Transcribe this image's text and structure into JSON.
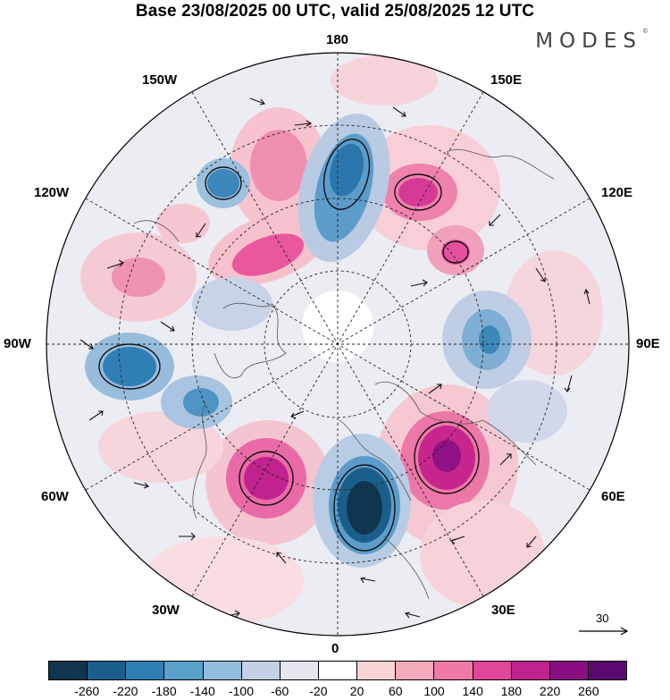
{
  "title": "Base 23/08/2025 00 UTC, valid 25/08/2025 12 UTC",
  "brand": {
    "name": "MODES",
    "mark": "©"
  },
  "longitude_labels": {
    "top": "180",
    "bottom": "0",
    "left": "90W",
    "right": "90E",
    "w150": "150W",
    "w120": "120W",
    "w60": "60W",
    "w30": "30W",
    "e150": "150E",
    "e120": "120E",
    "e60": "60E",
    "e30": "30E"
  },
  "colorbar": {
    "colors": [
      "#10364f",
      "#1a5f8c",
      "#2f7fb5",
      "#5aa1cc",
      "#93bddc",
      "#c3d0e5",
      "#e6e6f1",
      "#ffffff",
      "#f9d4d6",
      "#f5aabb",
      "#ef79a7",
      "#e04599",
      "#c0238d",
      "#8a0f83",
      "#5a0a6e"
    ],
    "labels": [
      "-260",
      "-220",
      "-180",
      "-140",
      "-100",
      "-60",
      "-20",
      "20",
      "60",
      "100",
      "140",
      "180",
      "220",
      "260"
    ]
  },
  "vector_reference": {
    "label": "30"
  }
}
